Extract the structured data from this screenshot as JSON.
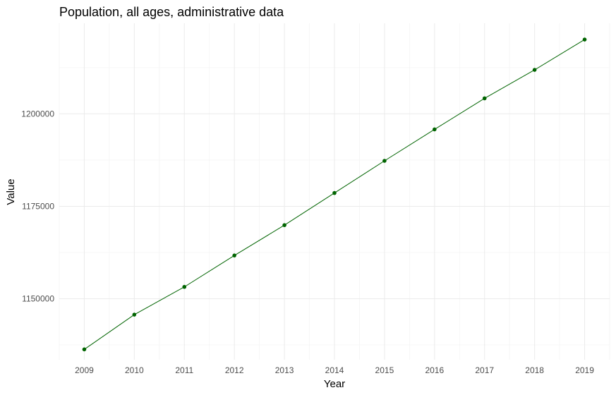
{
  "chart_data": {
    "type": "line",
    "title": "Population, all ages, administrative data",
    "xlabel": "Year",
    "ylabel": "Value",
    "x": [
      2009,
      2010,
      2011,
      2012,
      2013,
      2014,
      2015,
      2016,
      2017,
      2018,
      2019
    ],
    "series": [
      {
        "values": [
          1136300,
          1145700,
          1153200,
          1161700,
          1169900,
          1178600,
          1187300,
          1195800,
          1204200,
          1211900,
          1220100
        ],
        "color": "#006400",
        "markers": true
      }
    ],
    "yticks": [
      1150000,
      1175000,
      1200000
    ],
    "ylim": [
      1133500,
      1224500
    ],
    "grid": true,
    "theme": "minimal"
  }
}
